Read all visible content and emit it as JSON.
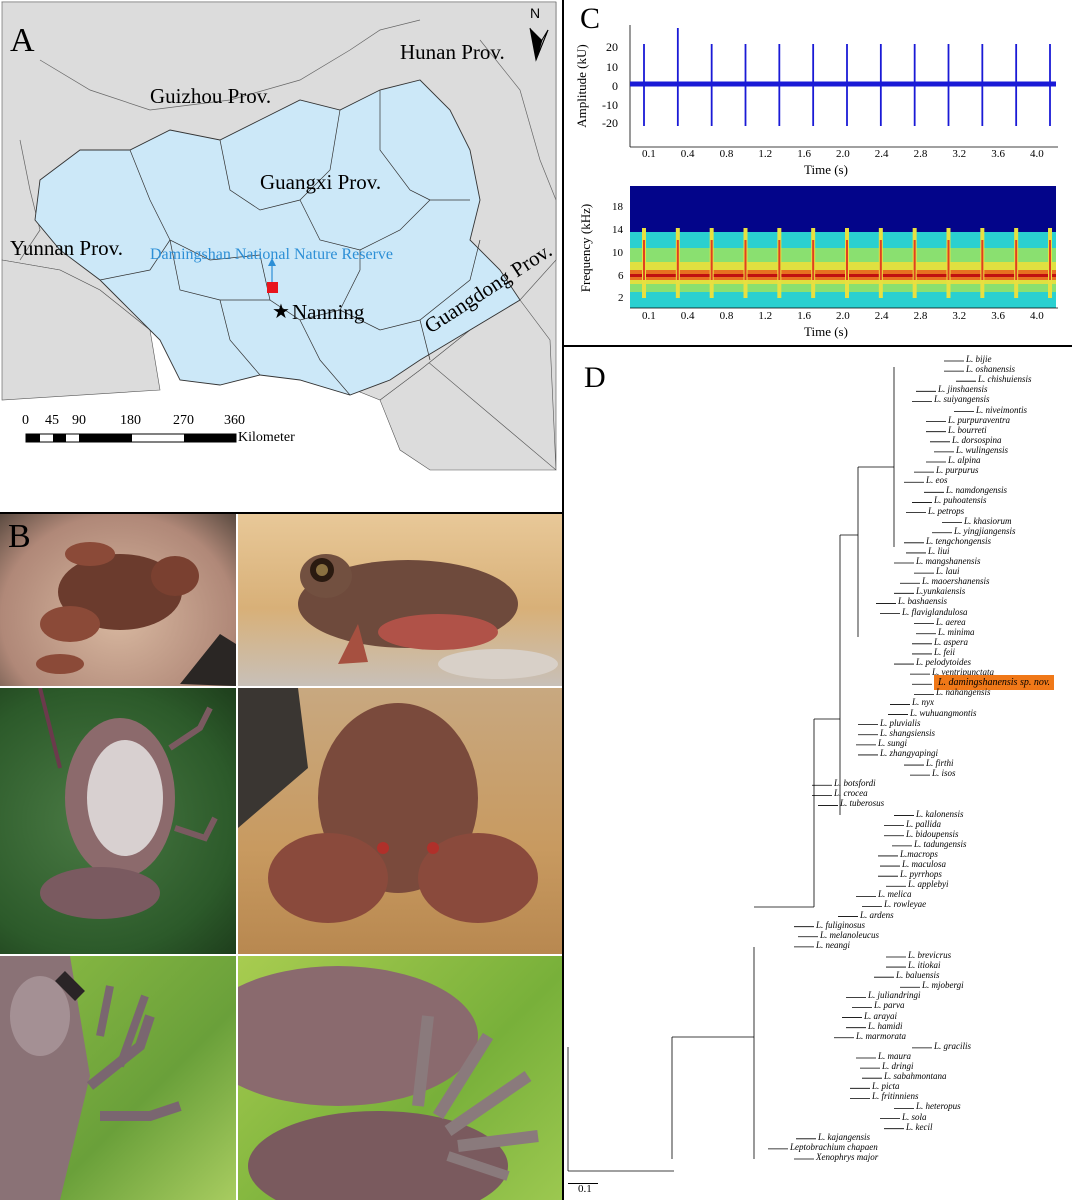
{
  "panels": {
    "A": {
      "label": "A",
      "regions": {
        "hunan": "Hunan Prov.",
        "guizhou": "Guizhou Prov.",
        "guangxi": "Guangxi Prov.",
        "yunnan": "Yunnan Prov.",
        "guangdong": "Guangdong Prov.",
        "reserve": "Damingshan National Nature Reserve",
        "city": "Nanning"
      },
      "north": "N",
      "scale": {
        "ticks": [
          "0",
          "45",
          "90",
          "180",
          "270",
          "360"
        ],
        "unit": "Kilometer"
      },
      "colors": {
        "province": "#cce8f8",
        "neighbor": "#dcdcdc",
        "reserve_marker": "#e8141c",
        "reserve_label": "#2d8fd6"
      }
    },
    "B": {
      "label": "B"
    },
    "C": {
      "label": "C",
      "waveform": {
        "ylabel": "Amplitude (kU)",
        "yticks": [
          "20",
          "10",
          "0",
          "-10",
          "-20"
        ],
        "xlabel": "Time (s)",
        "xticks": [
          "0.1",
          "0.4",
          "0.8",
          "1.2",
          "1.6",
          "2.0",
          "2.4",
          "2.8",
          "3.2",
          "3.6",
          "4.0"
        ],
        "color": "#1a1ad6"
      },
      "spectrogram": {
        "ylabel": "Frequency  (kHz)",
        "yticks": [
          "18",
          "14",
          "10",
          "6",
          "2"
        ],
        "xlabel": "Time (s)",
        "xticks": [
          "0.1",
          "0.4",
          "0.8",
          "1.2",
          "1.6",
          "2.0",
          "2.4",
          "2.8",
          "3.2",
          "3.6",
          "4.0"
        ]
      },
      "note_count": 13
    },
    "D": {
      "label": "D",
      "scale_bar": "0.1",
      "highlight_color": "#f07818",
      "taxa": [
        "L. bijie",
        "L. oshanensis",
        "L. chishuiensis",
        "L. jinshaensis",
        "L. suiyangensis",
        "L. niveimontis",
        "L. purpuraventra",
        "L. bourreti",
        "L. dorsospina",
        "L. wulingensis",
        "L. alpina",
        "L. purpurus",
        "L. eos",
        "L. namdongensis",
        "L. puhoatensis",
        "L. petrops",
        "L. khasiorum",
        "L. yingjiangensis",
        "L. tengchongensis",
        "L. liui",
        "L. mangshanensis",
        "L. laui",
        "L. maoershanensis",
        "L.yunkaiensis",
        "L. bashaensis",
        "L. flaviglandulosa",
        "L. aerea",
        "L. minima",
        "L. aspera",
        "L. feii",
        "L. pelodytoides",
        "L. ventripunctata",
        "L. damingshanensis sp. nov.",
        "L. nahangensis",
        "L. nyx",
        "L. wuhuangmontis",
        "L. pluvialis",
        "L. shangsiensis",
        "L. sungi",
        "L. zhangyapingi",
        "L. firthi",
        "L. isos",
        "L. botsfordi",
        "L. crocea",
        "L. tuberosus",
        "L. kalonensis",
        "L. pallida",
        "L. bidoupensis",
        "L. tadungensis",
        "L.macrops",
        "L. maculosa",
        "L. pyrrhops",
        "L. applebyi",
        "L. melica",
        "L. rowleyae",
        "L. ardens",
        "L. fuliginosus",
        "L. melanoleucus",
        "L. neangi",
        "L. brevicrus",
        "L. itiokai",
        "L. baluensis",
        "L. mjobergi",
        "L. juliandringi",
        "L. parva",
        "L. arayai",
        "L. hamidi",
        "L. marmorata",
        "L. gracilis",
        "L. maura",
        "L. dringi",
        "L. sabahmontana",
        "L. picta",
        "L. fritinniens",
        "L. heteropus",
        "L. sola",
        "L. kecil",
        "L. kajangensis",
        "Leptobrachium chapaen",
        "Xenophrys major"
      ]
    }
  }
}
